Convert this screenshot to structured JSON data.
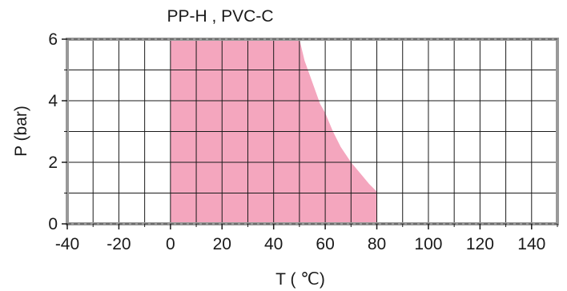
{
  "chart_data": {
    "type": "area",
    "title": "PP-H , PVC-C",
    "xlabel": "T ( ℃)",
    "ylabel": "P (bar)",
    "xlim": [
      -40,
      150
    ],
    "ylim": [
      0,
      6
    ],
    "x_ticks": [
      -40,
      -20,
      0,
      20,
      40,
      60,
      80,
      100,
      120,
      140
    ],
    "x_tick_labels": [
      "-40",
      "-20",
      "0",
      "20",
      "40",
      "60",
      "80",
      "100",
      "120",
      "140"
    ],
    "y_ticks": [
      0,
      2,
      4,
      6
    ],
    "y_tick_labels": [
      "0",
      "2",
      "4",
      "6"
    ],
    "x_grid_step": 10,
    "y_grid_step": 1,
    "grid": true,
    "fill_color": "#f4a6be",
    "grid_color": "#1a1a1a",
    "border_color": "#999999",
    "reference_line_color": "#555555",
    "series": [
      {
        "x": [
          0,
          0,
          50,
          52,
          55,
          58,
          60,
          63,
          66,
          70,
          74,
          77,
          80,
          80
        ],
        "y": [
          0,
          6,
          6,
          5.3,
          4.6,
          3.9,
          3.6,
          3.0,
          2.5,
          2.0,
          1.6,
          1.3,
          1.05,
          0
        ]
      }
    ]
  }
}
